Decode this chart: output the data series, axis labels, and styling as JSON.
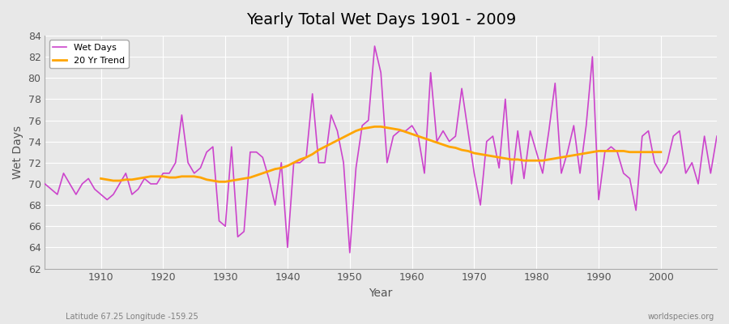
{
  "title": "Yearly Total Wet Days 1901 - 2009",
  "xlabel": "Year",
  "ylabel": "Wet Days",
  "subtitle": "Latitude 67.25 Longitude -159.25",
  "watermark": "worldspecies.org",
  "wet_days_color": "#CC44CC",
  "trend_color": "#FFA500",
  "background_color": "#E8E8E8",
  "ylim": [
    62,
    84
  ],
  "xlim": [
    1901,
    2009
  ],
  "yticks": [
    62,
    64,
    66,
    68,
    70,
    72,
    74,
    76,
    78,
    80,
    82,
    84
  ],
  "years": [
    1901,
    1902,
    1903,
    1904,
    1905,
    1906,
    1907,
    1908,
    1909,
    1910,
    1911,
    1912,
    1913,
    1914,
    1915,
    1916,
    1917,
    1918,
    1919,
    1920,
    1921,
    1922,
    1923,
    1924,
    1925,
    1926,
    1927,
    1928,
    1929,
    1930,
    1931,
    1932,
    1933,
    1934,
    1935,
    1936,
    1937,
    1938,
    1939,
    1940,
    1941,
    1942,
    1943,
    1944,
    1945,
    1946,
    1947,
    1948,
    1949,
    1950,
    1951,
    1952,
    1953,
    1954,
    1955,
    1956,
    1957,
    1958,
    1959,
    1960,
    1961,
    1962,
    1963,
    1964,
    1965,
    1966,
    1967,
    1968,
    1969,
    1970,
    1971,
    1972,
    1973,
    1974,
    1975,
    1976,
    1977,
    1978,
    1979,
    1980,
    1981,
    1982,
    1983,
    1984,
    1985,
    1986,
    1987,
    1988,
    1989,
    1990,
    1991,
    1992,
    1993,
    1994,
    1995,
    1996,
    1997,
    1998,
    1999,
    2000,
    2001,
    2002,
    2003,
    2004,
    2005,
    2006,
    2007,
    2008,
    2009
  ],
  "wet_days": [
    70,
    69.5,
    69,
    71,
    70,
    69,
    70,
    70.5,
    69.5,
    69,
    68.5,
    69,
    70,
    71,
    69,
    69.5,
    70.5,
    70,
    70,
    71,
    71,
    72,
    76.5,
    72,
    71,
    71.5,
    73,
    73.5,
    66.5,
    66,
    73.5,
    65,
    65.5,
    73,
    73,
    72.5,
    70.5,
    68,
    72,
    64,
    72,
    72,
    72.5,
    78.5,
    72,
    72,
    76.5,
    75,
    72,
    63.5,
    71.5,
    75.5,
    76,
    83,
    80.5,
    72,
    74.5,
    75,
    75,
    75.5,
    74.5,
    71,
    80.5,
    74,
    75,
    74,
    74.5,
    79,
    75,
    71,
    68,
    74,
    74.5,
    71.5,
    78,
    70,
    75,
    70.5,
    75,
    73,
    71,
    75,
    79.5,
    71,
    73,
    75.5,
    71,
    75.5,
    82,
    68.5,
    73,
    73.5,
    73,
    71,
    70.5,
    67.5,
    74.5,
    75,
    72,
    71,
    72,
    74.5,
    75,
    71,
    72,
    70,
    74.5,
    71,
    74.5
  ],
  "trend_years": [
    1910,
    1911,
    1912,
    1913,
    1914,
    1915,
    1916,
    1917,
    1918,
    1919,
    1920,
    1921,
    1922,
    1923,
    1924,
    1925,
    1926,
    1927,
    1928,
    1929,
    1930,
    1931,
    1932,
    1933,
    1934,
    1935,
    1936,
    1937,
    1938,
    1939,
    1940,
    1941,
    1942,
    1943,
    1944,
    1945,
    1946,
    1947,
    1948,
    1949,
    1950,
    1951,
    1952,
    1953,
    1954,
    1955,
    1956,
    1957,
    1958,
    1959,
    1960,
    1961,
    1962,
    1963,
    1964,
    1965,
    1966,
    1967,
    1968,
    1969,
    1970,
    1971,
    1972,
    1973,
    1974,
    1975,
    1976,
    1977,
    1978,
    1979,
    1980,
    1981,
    1982,
    1983,
    1984,
    1985,
    1986,
    1987,
    1988,
    1989,
    1990,
    1991,
    1992,
    1993,
    1994,
    1995,
    1996,
    1997,
    1998,
    1999,
    2000
  ],
  "trend_values": [
    70.5,
    70.4,
    70.3,
    70.3,
    70.4,
    70.4,
    70.5,
    70.6,
    70.7,
    70.7,
    70.7,
    70.6,
    70.6,
    70.7,
    70.7,
    70.7,
    70.6,
    70.4,
    70.3,
    70.2,
    70.2,
    70.3,
    70.4,
    70.5,
    70.6,
    70.8,
    71.0,
    71.2,
    71.4,
    71.5,
    71.7,
    72.0,
    72.3,
    72.5,
    72.8,
    73.2,
    73.5,
    73.8,
    74.1,
    74.4,
    74.7,
    75.0,
    75.2,
    75.3,
    75.4,
    75.4,
    75.3,
    75.2,
    75.1,
    74.9,
    74.7,
    74.5,
    74.3,
    74.1,
    73.9,
    73.7,
    73.5,
    73.4,
    73.2,
    73.1,
    72.9,
    72.8,
    72.7,
    72.6,
    72.5,
    72.4,
    72.3,
    72.3,
    72.2,
    72.2,
    72.2,
    72.2,
    72.3,
    72.4,
    72.5,
    72.6,
    72.7,
    72.8,
    72.9,
    73.0,
    73.1,
    73.1,
    73.1,
    73.1,
    73.1,
    73.0,
    73.0,
    73.0,
    73.0,
    73.0,
    73.0
  ]
}
